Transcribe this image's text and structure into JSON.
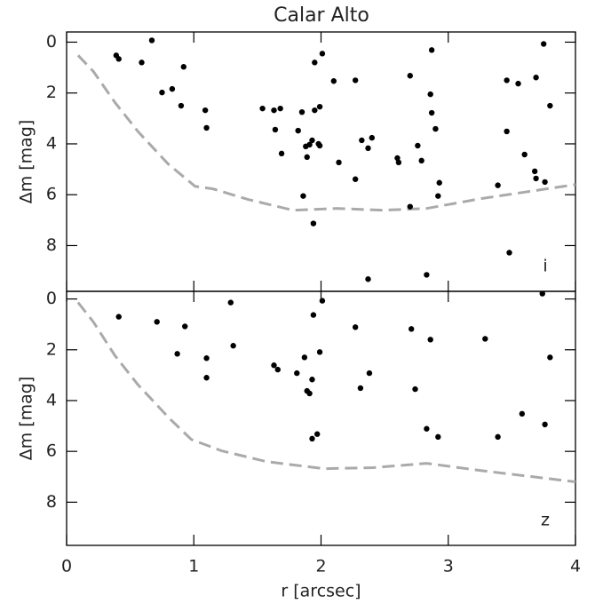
{
  "chart_data": [
    {
      "type": "scatter",
      "title": "Calar Alto",
      "ylabel": "Δm [mag]",
      "annotation": "i",
      "xlim": [
        0,
        4
      ],
      "xticks": [
        0,
        1,
        2,
        3,
        4
      ],
      "ylim": [
        9.8,
        -0.4
      ],
      "yticks": [
        0,
        2,
        4,
        6,
        8
      ],
      "points": {
        "color": "#000000",
        "x": [
          0.39,
          0.41,
          0.67,
          0.59,
          0.75,
          0.83,
          0.92,
          0.9,
          1.09,
          1.1,
          1.54,
          1.63,
          1.68,
          1.64,
          1.69,
          1.95,
          2.01,
          1.85,
          1.82,
          1.95,
          1.99,
          1.88,
          1.93,
          1.91,
          1.99,
          1.98,
          1.89,
          1.86,
          1.94,
          2.1,
          2.14,
          2.27,
          2.27,
          2.32,
          2.37,
          2.4,
          2.37,
          2.6,
          2.61,
          2.7,
          2.7,
          2.76,
          2.79,
          2.86,
          2.87,
          2.87,
          2.9,
          2.93,
          2.92,
          2.83,
          3.46,
          3.46,
          3.39,
          3.48,
          3.55,
          3.6,
          3.69,
          3.68,
          3.69,
          3.75,
          3.76,
          3.8
        ],
        "y": [
          0.52,
          0.66,
          -0.07,
          0.8,
          1.98,
          1.84,
          0.97,
          2.5,
          2.68,
          3.37,
          2.61,
          2.68,
          2.61,
          3.44,
          4.38,
          0.8,
          0.45,
          2.75,
          3.48,
          2.68,
          2.54,
          4.1,
          3.86,
          4.03,
          4.07,
          4.0,
          4.52,
          6.05,
          7.13,
          1.53,
          4.73,
          1.5,
          5.39,
          3.86,
          4.17,
          3.76,
          9.32,
          4.56,
          4.73,
          1.32,
          6.47,
          4.07,
          4.66,
          2.05,
          0.31,
          2.78,
          3.41,
          5.53,
          6.05,
          9.15,
          1.5,
          3.51,
          5.63,
          8.28,
          1.63,
          4.42,
          1.39,
          5.08,
          5.36,
          0.07,
          5.5,
          2.5
        ]
      },
      "curve": {
        "color": "#aaaaaa",
        "x": [
          0.09,
          0.21,
          0.38,
          0.56,
          0.8,
          1.01,
          1.15,
          1.43,
          1.78,
          2.13,
          2.48,
          2.83,
          3.25,
          4.0
        ],
        "y": [
          0.52,
          1.15,
          2.37,
          3.51,
          4.8,
          5.67,
          5.77,
          6.19,
          6.61,
          6.54,
          6.61,
          6.54,
          6.16,
          5.6
        ]
      }
    },
    {
      "type": "scatter",
      "ylabel": "Δm [mag]",
      "xlabel": "r [arcsec]",
      "annotation": "z",
      "xlim": [
        0,
        4
      ],
      "xticks": [
        0,
        1,
        2,
        3,
        4
      ],
      "ylim": [
        9.7,
        -0.3
      ],
      "yticks": [
        0,
        2,
        4,
        6,
        8
      ],
      "points": {
        "color": "#000000",
        "x": [
          0.41,
          0.71,
          0.87,
          0.93,
          1.1,
          1.1,
          1.29,
          1.31,
          1.63,
          1.66,
          1.81,
          1.87,
          1.89,
          1.91,
          1.93,
          1.94,
          1.99,
          2.01,
          1.93,
          1.97,
          2.27,
          2.31,
          2.38,
          2.71,
          2.74,
          2.83,
          2.86,
          2.92,
          3.29,
          3.39,
          3.58,
          3.74,
          3.76,
          3.8
        ],
        "y": [
          0.7,
          0.9,
          2.16,
          1.08,
          2.33,
          3.1,
          0.14,
          1.84,
          2.61,
          2.78,
          2.92,
          2.3,
          3.62,
          3.72,
          3.17,
          0.63,
          2.09,
          0.07,
          5.5,
          5.32,
          1.11,
          3.51,
          2.92,
          1.18,
          3.55,
          5.11,
          1.6,
          5.43,
          1.57,
          5.43,
          4.52,
          -0.21,
          4.94,
          2.3
        ]
      },
      "curve": {
        "color": "#aaaaaa",
        "x": [
          0.09,
          0.21,
          0.38,
          0.56,
          0.8,
          0.98,
          1.22,
          1.57,
          2.02,
          2.41,
          2.83,
          3.25,
          4.0
        ],
        "y": [
          0.14,
          0.9,
          2.23,
          3.37,
          4.66,
          5.53,
          5.98,
          6.4,
          6.68,
          6.64,
          6.47,
          6.75,
          7.2
        ]
      }
    }
  ]
}
